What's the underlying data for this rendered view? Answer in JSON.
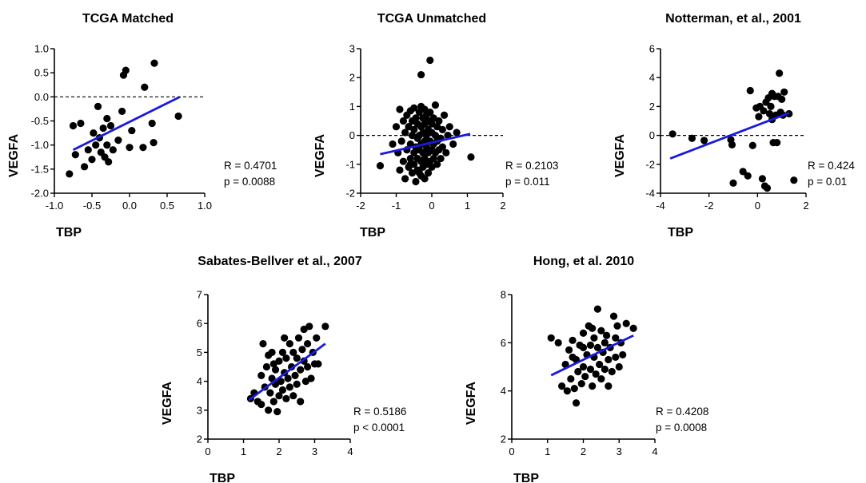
{
  "chart_data": [
    {
      "type": "scatter",
      "title": "TCGA Matched",
      "xlabel": "TBP",
      "ylabel": "VEGFA",
      "xlim": [
        -1.0,
        1.0
      ],
      "ylim": [
        -2.0,
        1.0
      ],
      "xticks": [
        "-1.0",
        "-0.5",
        "0.0",
        "0.5",
        "1.0"
      ],
      "yticks": [
        "-2.0",
        "-1.5",
        "-1.0",
        "-0.5",
        "0.0",
        "0.5",
        "1.0"
      ],
      "stats": [
        "R = 0.4701",
        "p = 0.0088"
      ],
      "zero_line": true,
      "fit": {
        "x": [
          -0.75,
          0.67
        ],
        "y": [
          -1.1,
          0.0
        ]
      },
      "points": [
        [
          -0.8,
          -1.6
        ],
        [
          -0.75,
          -0.6
        ],
        [
          -0.72,
          -1.2
        ],
        [
          -0.65,
          -0.55
        ],
        [
          -0.6,
          -1.45
        ],
        [
          -0.55,
          -1.1
        ],
        [
          -0.5,
          -1.3
        ],
        [
          -0.48,
          -0.75
        ],
        [
          -0.45,
          -1.0
        ],
        [
          -0.42,
          -0.2
        ],
        [
          -0.4,
          -0.85
        ],
        [
          -0.38,
          -1.15
        ],
        [
          -0.35,
          -0.65
        ],
        [
          -0.33,
          -1.25
        ],
        [
          -0.3,
          -0.45
        ],
        [
          -0.3,
          -1.0
        ],
        [
          -0.28,
          -1.35
        ],
        [
          -0.25,
          -0.6
        ],
        [
          -0.22,
          -1.1
        ],
        [
          -0.15,
          -0.9
        ],
        [
          -0.1,
          -0.3
        ],
        [
          -0.08,
          0.45
        ],
        [
          -0.05,
          0.55
        ],
        [
          0.0,
          -1.05
        ],
        [
          0.03,
          -0.7
        ],
        [
          0.18,
          -1.05
        ],
        [
          0.2,
          0.2
        ],
        [
          0.3,
          -0.55
        ],
        [
          0.32,
          -0.95
        ],
        [
          0.33,
          0.7
        ],
        [
          0.65,
          -0.4
        ]
      ]
    },
    {
      "type": "scatter",
      "title": "TCGA Unmatched",
      "xlabel": "TBP",
      "ylabel": "VEGFA",
      "xlim": [
        -2,
        2
      ],
      "ylim": [
        -2,
        3
      ],
      "xticks": [
        "-2",
        "-1",
        "0",
        "1",
        "2"
      ],
      "yticks": [
        "-2",
        "-1",
        "0",
        "1",
        "2",
        "3"
      ],
      "stats": [
        "R = 0.2103",
        "p = 0.011"
      ],
      "zero_line": true,
      "fit": {
        "x": [
          -1.45,
          1.08
        ],
        "y": [
          -0.65,
          0.05
        ]
      },
      "points": [
        [
          -1.45,
          -1.05
        ],
        [
          -1.1,
          -0.3
        ],
        [
          -1.0,
          0.3
        ],
        [
          -0.95,
          -0.6
        ],
        [
          -0.9,
          -1.2
        ],
        [
          -0.9,
          0.9
        ],
        [
          -0.85,
          -0.2
        ],
        [
          -0.8,
          0.5
        ],
        [
          -0.8,
          -0.9
        ],
        [
          -0.75,
          -1.5
        ],
        [
          -0.75,
          0.1
        ],
        [
          -0.7,
          -0.5
        ],
        [
          -0.7,
          0.7
        ],
        [
          -0.65,
          -1.1
        ],
        [
          -0.65,
          0.3
        ],
        [
          -0.6,
          -0.3
        ],
        [
          -0.6,
          -0.8
        ],
        [
          -0.6,
          0.85
        ],
        [
          -0.55,
          -1.3
        ],
        [
          -0.55,
          0.0
        ],
        [
          -0.55,
          0.5
        ],
        [
          -0.5,
          -0.6
        ],
        [
          -0.5,
          -1.0
        ],
        [
          -0.5,
          0.2
        ],
        [
          -0.5,
          0.95
        ],
        [
          -0.45,
          -0.4
        ],
        [
          -0.45,
          -1.6
        ],
        [
          -0.45,
          0.6
        ],
        [
          -0.4,
          -0.1
        ],
        [
          -0.4,
          -0.8
        ],
        [
          -0.4,
          -1.2
        ],
        [
          -0.4,
          0.4
        ],
        [
          -0.35,
          0.0
        ],
        [
          -0.35,
          -0.5
        ],
        [
          -0.35,
          0.8
        ],
        [
          -0.3,
          -0.3
        ],
        [
          -0.3,
          -0.9
        ],
        [
          -0.3,
          -1.4
        ],
        [
          -0.3,
          0.3
        ],
        [
          -0.3,
          1.0
        ],
        [
          -0.25,
          -0.6
        ],
        [
          -0.25,
          0.1
        ],
        [
          -0.25,
          0.6
        ],
        [
          -0.25,
          -1.1
        ],
        [
          -0.2,
          -0.2
        ],
        [
          -0.2,
          -0.8
        ],
        [
          -0.2,
          0.4
        ],
        [
          -0.2,
          0.9
        ],
        [
          -0.2,
          -1.5
        ],
        [
          -0.15,
          0.0
        ],
        [
          -0.15,
          -0.4
        ],
        [
          -0.15,
          -1.0
        ],
        [
          -0.15,
          0.7
        ],
        [
          -0.1,
          -0.6
        ],
        [
          -0.1,
          0.2
        ],
        [
          -0.1,
          -1.3
        ],
        [
          -0.1,
          0.5
        ],
        [
          -0.05,
          -0.2
        ],
        [
          -0.05,
          -0.9
        ],
        [
          -0.05,
          0.8
        ],
        [
          0.0,
          0.1
        ],
        [
          0.0,
          -0.5
        ],
        [
          0.0,
          -1.1
        ],
        [
          0.0,
          0.4
        ],
        [
          0.05,
          -0.3
        ],
        [
          0.05,
          0.6
        ],
        [
          0.05,
          -0.8
        ],
        [
          0.1,
          0.0
        ],
        [
          0.1,
          -0.6
        ],
        [
          0.1,
          1.05
        ],
        [
          0.15,
          -0.2
        ],
        [
          0.15,
          0.3
        ],
        [
          0.15,
          -1.0
        ],
        [
          0.2,
          -0.5
        ],
        [
          0.2,
          0.5
        ],
        [
          0.25,
          -0.1
        ],
        [
          0.25,
          -0.8
        ],
        [
          0.3,
          0.2
        ],
        [
          0.3,
          -0.4
        ],
        [
          0.35,
          0.7
        ],
        [
          0.4,
          -0.6
        ],
        [
          0.45,
          0.0
        ],
        [
          0.5,
          0.3
        ],
        [
          0.6,
          -0.3
        ],
        [
          0.7,
          0.1
        ],
        [
          1.1,
          -0.75
        ],
        [
          -0.3,
          2.1
        ],
        [
          -0.05,
          2.6
        ],
        [
          -0.6,
          -1.0
        ],
        [
          -0.35,
          -1.3
        ]
      ]
    },
    {
      "type": "scatter",
      "title": "Notterman, et al., 2001",
      "xlabel": "TBP",
      "ylabel": "VEGFA",
      "xlim": [
        -4,
        2
      ],
      "ylim": [
        -4,
        6
      ],
      "xticks": [
        "-4",
        "-2",
        "0",
        "2"
      ],
      "yticks": [
        "-4",
        "-2",
        "0",
        "2",
        "4",
        "6"
      ],
      "stats": [
        "R = 0.424",
        "p = 0.01"
      ],
      "zero_line": true,
      "fit": {
        "x": [
          -3.6,
          1.3
        ],
        "y": [
          -1.6,
          1.55
        ]
      },
      "points": [
        [
          -3.5,
          0.1
        ],
        [
          -2.7,
          -0.2
        ],
        [
          -2.2,
          -0.35
        ],
        [
          -1.1,
          -0.3
        ],
        [
          -1.05,
          -0.65
        ],
        [
          -1.0,
          -3.3
        ],
        [
          -0.6,
          -2.5
        ],
        [
          -0.4,
          -2.8
        ],
        [
          -0.3,
          3.1
        ],
        [
          -0.2,
          -0.7
        ],
        [
          -0.05,
          1.9
        ],
        [
          0.05,
          1.3
        ],
        [
          0.1,
          2.0
        ],
        [
          0.2,
          -3.0
        ],
        [
          0.25,
          1.7
        ],
        [
          0.3,
          -3.5
        ],
        [
          0.35,
          2.3
        ],
        [
          0.4,
          -3.65
        ],
        [
          0.45,
          2.6
        ],
        [
          0.5,
          1.5
        ],
        [
          0.55,
          2.0
        ],
        [
          0.6,
          1.1
        ],
        [
          0.65,
          -0.5
        ],
        [
          0.7,
          2.7
        ],
        [
          0.75,
          1.4
        ],
        [
          0.8,
          -0.5
        ],
        [
          0.85,
          2.7
        ],
        [
          0.9,
          4.3
        ],
        [
          0.95,
          1.6
        ],
        [
          1.0,
          2.5
        ],
        [
          1.05,
          1.4
        ],
        [
          1.1,
          3.0
        ],
        [
          1.3,
          1.5
        ],
        [
          1.5,
          -3.1
        ],
        [
          0.6,
          2.9
        ]
      ]
    },
    {
      "type": "scatter",
      "title": "Sabates-Bellver et al., 2007",
      "xlabel": "TBP",
      "ylabel": "VEGFA",
      "xlim": [
        0,
        4
      ],
      "ylim": [
        2,
        7
      ],
      "xticks": [
        "0",
        "1",
        "2",
        "3",
        "4"
      ],
      "yticks": [
        "2",
        "3",
        "4",
        "5",
        "6",
        "7"
      ],
      "stats": [
        "R = 0.5186",
        "p < 0.0001"
      ],
      "zero_line": false,
      "fit": {
        "x": [
          1.15,
          3.3
        ],
        "y": [
          3.35,
          5.3
        ]
      },
      "points": [
        [
          1.2,
          3.4
        ],
        [
          1.3,
          3.6
        ],
        [
          1.4,
          3.3
        ],
        [
          1.5,
          3.2
        ],
        [
          1.5,
          4.2
        ],
        [
          1.55,
          5.3
        ],
        [
          1.6,
          3.8
        ],
        [
          1.65,
          4.5
        ],
        [
          1.7,
          3.0
        ],
        [
          1.7,
          4.9
        ],
        [
          1.75,
          3.6
        ],
        [
          1.8,
          4.1
        ],
        [
          1.8,
          5.0
        ],
        [
          1.85,
          3.3
        ],
        [
          1.9,
          4.4
        ],
        [
          1.9,
          3.9
        ],
        [
          1.95,
          2.95
        ],
        [
          2.0,
          4.7
        ],
        [
          2.0,
          3.5
        ],
        [
          2.05,
          4.0
        ],
        [
          2.1,
          5.0
        ],
        [
          2.1,
          3.7
        ],
        [
          2.15,
          4.3
        ],
        [
          2.2,
          3.4
        ],
        [
          2.2,
          4.8
        ],
        [
          2.25,
          4.1
        ],
        [
          2.3,
          5.3
        ],
        [
          2.3,
          3.8
        ],
        [
          2.35,
          4.5
        ],
        [
          2.4,
          3.5
        ],
        [
          2.4,
          5.0
        ],
        [
          2.45,
          4.2
        ],
        [
          2.5,
          4.8
        ],
        [
          2.5,
          3.9
        ],
        [
          2.55,
          5.5
        ],
        [
          2.6,
          4.4
        ],
        [
          2.6,
          3.3
        ],
        [
          2.65,
          5.1
        ],
        [
          2.7,
          4.7
        ],
        [
          2.7,
          5.8
        ],
        [
          2.75,
          4.0
        ],
        [
          2.8,
          5.3
        ],
        [
          2.8,
          4.5
        ],
        [
          2.85,
          5.9
        ],
        [
          2.9,
          4.1
        ],
        [
          2.95,
          5.0
        ],
        [
          3.0,
          4.6
        ],
        [
          3.05,
          5.5
        ],
        [
          3.1,
          4.6
        ],
        [
          3.3,
          5.9
        ],
        [
          2.15,
          5.5
        ],
        [
          1.85,
          4.6
        ]
      ]
    },
    {
      "type": "scatter",
      "title": "Hong, et al. 2010",
      "xlabel": "TBP",
      "ylabel": "VEGFA",
      "xlim": [
        0,
        4
      ],
      "ylim": [
        2,
        8
      ],
      "xticks": [
        "0",
        "1",
        "2",
        "3",
        "4"
      ],
      "yticks": [
        "2",
        "4",
        "6",
        "8"
      ],
      "stats": [
        "R = 0.4208",
        "p = 0.0008"
      ],
      "zero_line": false,
      "fit": {
        "x": [
          1.1,
          3.4
        ],
        "y": [
          4.65,
          6.3
        ]
      },
      "points": [
        [
          1.1,
          6.2
        ],
        [
          1.3,
          6.0
        ],
        [
          1.4,
          4.2
        ],
        [
          1.5,
          5.1
        ],
        [
          1.55,
          4.0
        ],
        [
          1.6,
          5.7
        ],
        [
          1.65,
          4.5
        ],
        [
          1.7,
          6.1
        ],
        [
          1.75,
          4.1
        ],
        [
          1.8,
          5.3
        ],
        [
          1.8,
          3.5
        ],
        [
          1.85,
          4.8
        ],
        [
          1.9,
          5.9
        ],
        [
          1.95,
          4.3
        ],
        [
          2.0,
          6.4
        ],
        [
          2.0,
          5.0
        ],
        [
          2.05,
          4.6
        ],
        [
          2.1,
          5.5
        ],
        [
          2.15,
          6.7
        ],
        [
          2.2,
          4.9
        ],
        [
          2.2,
          5.9
        ],
        [
          2.25,
          4.2
        ],
        [
          2.3,
          5.4
        ],
        [
          2.3,
          6.2
        ],
        [
          2.35,
          4.7
        ],
        [
          2.4,
          7.4
        ],
        [
          2.4,
          5.8
        ],
        [
          2.45,
          5.1
        ],
        [
          2.5,
          6.5
        ],
        [
          2.5,
          4.5
        ],
        [
          2.55,
          5.6
        ],
        [
          2.6,
          6.0
        ],
        [
          2.6,
          4.9
        ],
        [
          2.65,
          6.3
        ],
        [
          2.7,
          5.3
        ],
        [
          2.75,
          5.8
        ],
        [
          2.8,
          4.8
        ],
        [
          2.85,
          7.1
        ],
        [
          2.9,
          6.2
        ],
        [
          2.9,
          5.4
        ],
        [
          2.95,
          6.7
        ],
        [
          3.0,
          5.0
        ],
        [
          3.05,
          6.0
        ],
        [
          3.1,
          5.5
        ],
        [
          3.2,
          6.8
        ],
        [
          3.4,
          6.6
        ],
        [
          1.7,
          5.4
        ],
        [
          2.0,
          5.8
        ],
        [
          2.25,
          6.6
        ],
        [
          2.7,
          4.2
        ]
      ]
    }
  ]
}
